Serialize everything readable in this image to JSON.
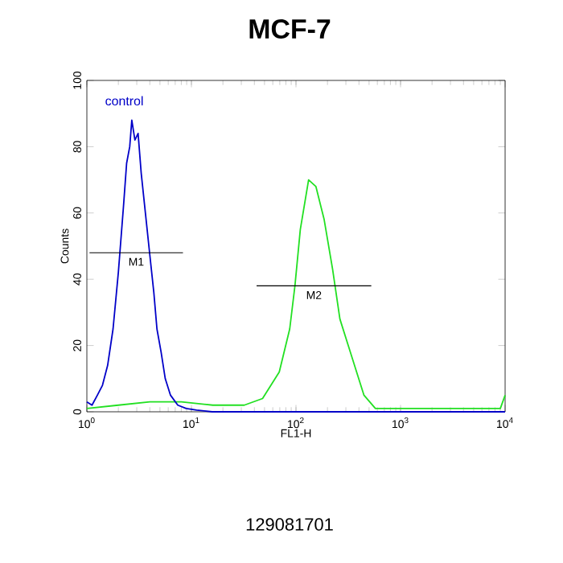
{
  "chart_data": {
    "type": "line",
    "title": "MCF-7",
    "xlabel": "FL1-H",
    "ylabel": "Counts",
    "log": "x",
    "xlim": [
      1,
      10000
    ],
    "ylim": [
      0,
      100
    ],
    "xticks": [
      {
        "value": 1,
        "label": "10$^{0}$"
      },
      {
        "value": 10,
        "label": "10$^{1}$"
      },
      {
        "value": 100,
        "label": "10$^{2}$"
      },
      {
        "value": 1000,
        "label": "10$^{3}$"
      },
      {
        "value": 10000,
        "label": "10$^{4}$"
      }
    ],
    "yticks": [
      0,
      20,
      40,
      60,
      80,
      100
    ],
    "series": [
      {
        "color": "#22e022",
        "x": [
          1,
          2,
          4,
          8,
          16,
          32,
          47.9,
          69.2,
          87.1,
          97.7,
          110,
          132,
          155,
          186,
          224,
          263,
          316,
          380,
          447,
          575,
          1000,
          3162,
          9000,
          10000
        ],
        "values": [
          1,
          2,
          3,
          3,
          2,
          2,
          4,
          12,
          25,
          38,
          55,
          70,
          68,
          58,
          43,
          28,
          20,
          12,
          5,
          1,
          1,
          1,
          1,
          5
        ]
      },
      {
        "name": "control",
        "color": "#0000c8",
        "x": [
          1,
          1.12,
          1.26,
          1.41,
          1.58,
          1.78,
          2,
          2.24,
          2.4,
          2.57,
          2.69,
          2.88,
          3.09,
          3.31,
          3.63,
          3.98,
          4.37,
          4.68,
          5.13,
          5.62,
          6.31,
          7.41,
          8.91,
          11.2,
          15.8,
          31.6,
          100,
          316,
          1000,
          3162,
          10000
        ],
        "values": [
          3,
          2,
          5,
          8,
          14,
          25,
          42,
          62,
          75,
          80,
          88,
          82,
          84,
          72,
          60,
          48,
          36,
          25,
          18,
          10,
          5,
          2,
          1,
          0.5,
          0,
          0,
          0,
          0,
          0,
          0,
          0
        ]
      },
      {
        "name": "M1",
        "color": "#000000",
        "x": [
          1.06,
          8.3
        ],
        "values": [
          48,
          48
        ]
      },
      {
        "name": "M2",
        "color": "#000000",
        "x": [
          42,
          525
        ],
        "values": [
          38,
          38
        ]
      }
    ],
    "annotations": [
      "129081701"
    ]
  }
}
